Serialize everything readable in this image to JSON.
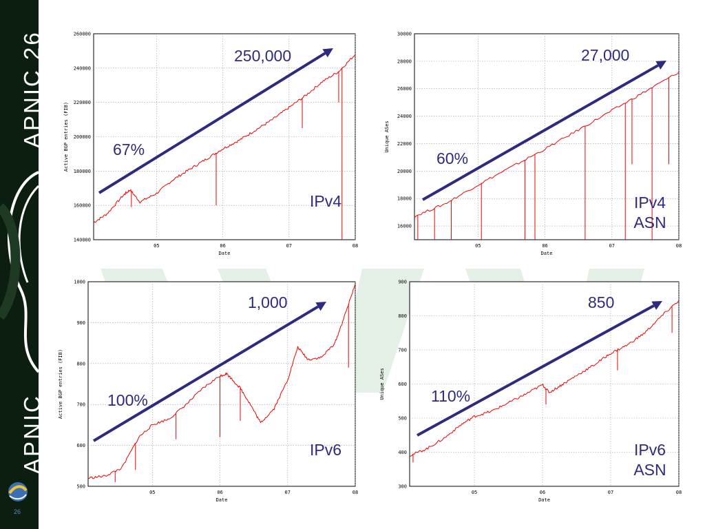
{
  "sidebar": {
    "event_title": "APNIC 26",
    "brand_name": "APNIC",
    "slide_number": "26"
  },
  "colors": {
    "sidebar_bg": "#0c1e10",
    "series_line": "#ee0000",
    "trend_arrow": "#2e2a7e",
    "callout_text": "#2e2a7e",
    "watermark": "#e4f0e6"
  },
  "chart_data": [
    {
      "id": "ipv4",
      "type": "line",
      "xlabel": "Date",
      "ylabel": "Active BGP entries (FIB)",
      "ylim": [
        140000,
        260000
      ],
      "yticks": [
        140000,
        160000,
        180000,
        200000,
        220000,
        240000,
        260000
      ],
      "xlim": [
        4.05,
        8.0
      ],
      "xticks": [
        "05",
        "06",
        "07",
        "08"
      ],
      "grid": true,
      "series": [
        {
          "x": [
            4.05,
            4.25,
            4.5,
            4.6,
            4.75,
            5.0,
            5.25,
            5.5,
            5.75,
            6.0,
            6.25,
            6.5,
            6.75,
            7.0,
            7.25,
            7.5,
            7.75,
            8.0
          ],
          "y": [
            150000,
            155000,
            166000,
            169000,
            162000,
            167000,
            175000,
            181000,
            187000,
            193000,
            198000,
            204000,
            210000,
            217000,
            224000,
            232000,
            238000,
            248000
          ]
        }
      ],
      "spikes": [
        {
          "x": 4.62,
          "y": 159000
        },
        {
          "x": 5.9,
          "y": 160000
        },
        {
          "x": 7.2,
          "y": 205000
        },
        {
          "x": 7.75,
          "y": 220000
        },
        {
          "x": 7.8,
          "y": 140000
        }
      ],
      "annotations": {
        "growth": "67%",
        "final_value": "250,000",
        "label": "IPv4"
      }
    },
    {
      "id": "ipv4-asn",
      "type": "line",
      "xlabel": "Date",
      "ylabel": "Unique ASes",
      "ylim": [
        15000,
        30000
      ],
      "yticks": [
        16000,
        18000,
        20000,
        22000,
        24000,
        26000,
        28000,
        30000
      ],
      "xlim": [
        4.05,
        8.0
      ],
      "xticks": [
        "05",
        "06",
        "07",
        "08"
      ],
      "grid": true,
      "series": [
        {
          "x": [
            4.05,
            4.5,
            5.0,
            5.5,
            6.0,
            6.5,
            7.0,
            7.5,
            8.0
          ],
          "y": [
            16700,
            17600,
            19000,
            20300,
            21600,
            23000,
            24400,
            25800,
            27200
          ]
        }
      ],
      "spikes": [
        {
          "x": 4.1,
          "y": 15000
        },
        {
          "x": 4.35,
          "y": 15000
        },
        {
          "x": 4.6,
          "y": 15000
        },
        {
          "x": 5.05,
          "y": 15000
        },
        {
          "x": 5.7,
          "y": 15000
        },
        {
          "x": 5.85,
          "y": 15000
        },
        {
          "x": 6.6,
          "y": 15000
        },
        {
          "x": 7.2,
          "y": 15000
        },
        {
          "x": 7.6,
          "y": 15000
        },
        {
          "x": 7.3,
          "y": 20500
        },
        {
          "x": 7.85,
          "y": 20500
        }
      ],
      "annotations": {
        "growth": "60%",
        "final_value": "27,000",
        "label": "IPv4\nASN"
      }
    },
    {
      "id": "ipv6",
      "type": "line",
      "xlabel": "Date",
      "ylabel": "Active BGP entries (FIB)",
      "ylim": [
        500,
        1000
      ],
      "yticks": [
        500,
        600,
        700,
        800,
        900,
        1000
      ],
      "xlim": [
        4.05,
        8.0
      ],
      "xticks": [
        "05",
        "06",
        "07",
        "08"
      ],
      "grid": true,
      "series": [
        {
          "x": [
            4.05,
            4.3,
            4.55,
            4.8,
            5.0,
            5.25,
            5.5,
            5.75,
            6.0,
            6.1,
            6.3,
            6.45,
            6.6,
            6.8,
            7.0,
            7.15,
            7.3,
            7.5,
            7.7,
            7.85,
            8.0
          ],
          "y": [
            520,
            525,
            545,
            620,
            650,
            665,
            700,
            740,
            770,
            775,
            740,
            700,
            655,
            690,
            760,
            840,
            810,
            815,
            850,
            920,
            995
          ]
        }
      ],
      "spikes": [
        {
          "x": 4.45,
          "y": 510
        },
        {
          "x": 4.75,
          "y": 540
        },
        {
          "x": 5.35,
          "y": 615
        },
        {
          "x": 6.0,
          "y": 620
        },
        {
          "x": 6.3,
          "y": 660
        },
        {
          "x": 7.9,
          "y": 790
        }
      ],
      "annotations": {
        "growth": "100%",
        "final_value": "1,000",
        "label": "IPv6"
      }
    },
    {
      "id": "ipv6-asn",
      "type": "line",
      "xlabel": "Date",
      "ylabel": "Unique ASes",
      "ylim": [
        300,
        900
      ],
      "yticks": [
        300,
        400,
        500,
        600,
        700,
        800,
        900
      ],
      "xlim": [
        4.05,
        8.0
      ],
      "xticks": [
        "05",
        "06",
        "07",
        "08"
      ],
      "grid": true,
      "series": [
        {
          "x": [
            4.05,
            4.3,
            4.55,
            4.8,
            5.0,
            5.25,
            5.5,
            5.75,
            6.0,
            6.1,
            6.3,
            6.5,
            6.75,
            7.0,
            7.25,
            7.5,
            7.75,
            8.0
          ],
          "y": [
            390,
            410,
            440,
            480,
            505,
            520,
            545,
            570,
            598,
            575,
            600,
            625,
            655,
            690,
            715,
            750,
            800,
            845
          ]
        }
      ],
      "spikes": [
        {
          "x": 4.1,
          "y": 370
        },
        {
          "x": 6.05,
          "y": 540
        },
        {
          "x": 7.1,
          "y": 640
        },
        {
          "x": 7.9,
          "y": 750
        }
      ],
      "annotations": {
        "growth": "110%",
        "final_value": "850",
        "label": "IPv6\nASN"
      }
    }
  ]
}
